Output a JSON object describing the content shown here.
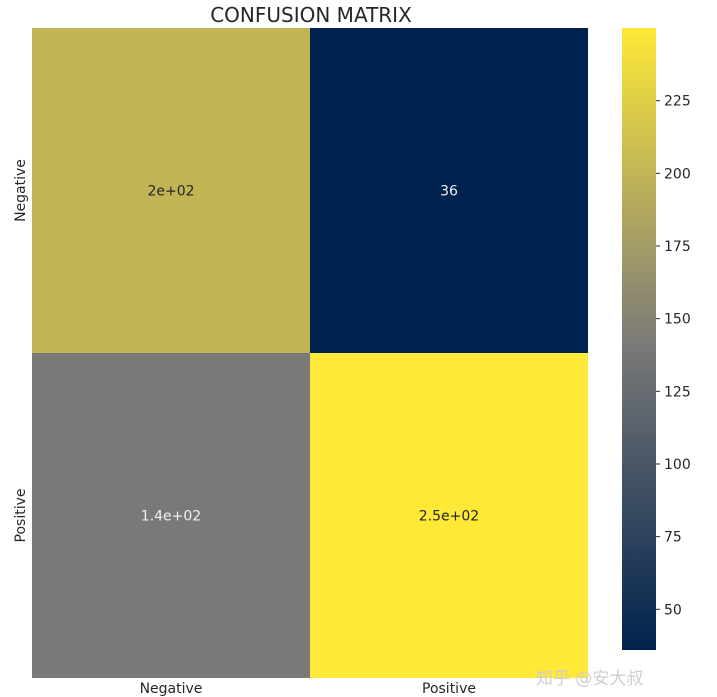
{
  "chart_data": {
    "type": "heatmap",
    "title": "CONFUSION MATRIX",
    "xlabel": "",
    "ylabel": "",
    "x_categories": [
      "Negative",
      "Positive"
    ],
    "y_categories": [
      "Negative",
      "Positive"
    ],
    "values": [
      [
        200,
        36
      ],
      [
        140,
        250
      ]
    ],
    "annotations": [
      [
        "2e+02",
        "36"
      ],
      [
        "1.4e+02",
        "2.5e+02"
      ]
    ],
    "colormap": "cividis",
    "colorbar": {
      "ticks": [
        50,
        75,
        100,
        125,
        150,
        175,
        200,
        225
      ],
      "range": [
        36,
        250
      ]
    },
    "grid": false,
    "legend": "colorbar-right"
  },
  "watermark": "知乎 @安大叔",
  "colors": {
    "low": "#00224e",
    "mid": "#7c7b78",
    "high": "#fee838",
    "text_dark": "#262626",
    "text_light": "#f0f0f0"
  }
}
